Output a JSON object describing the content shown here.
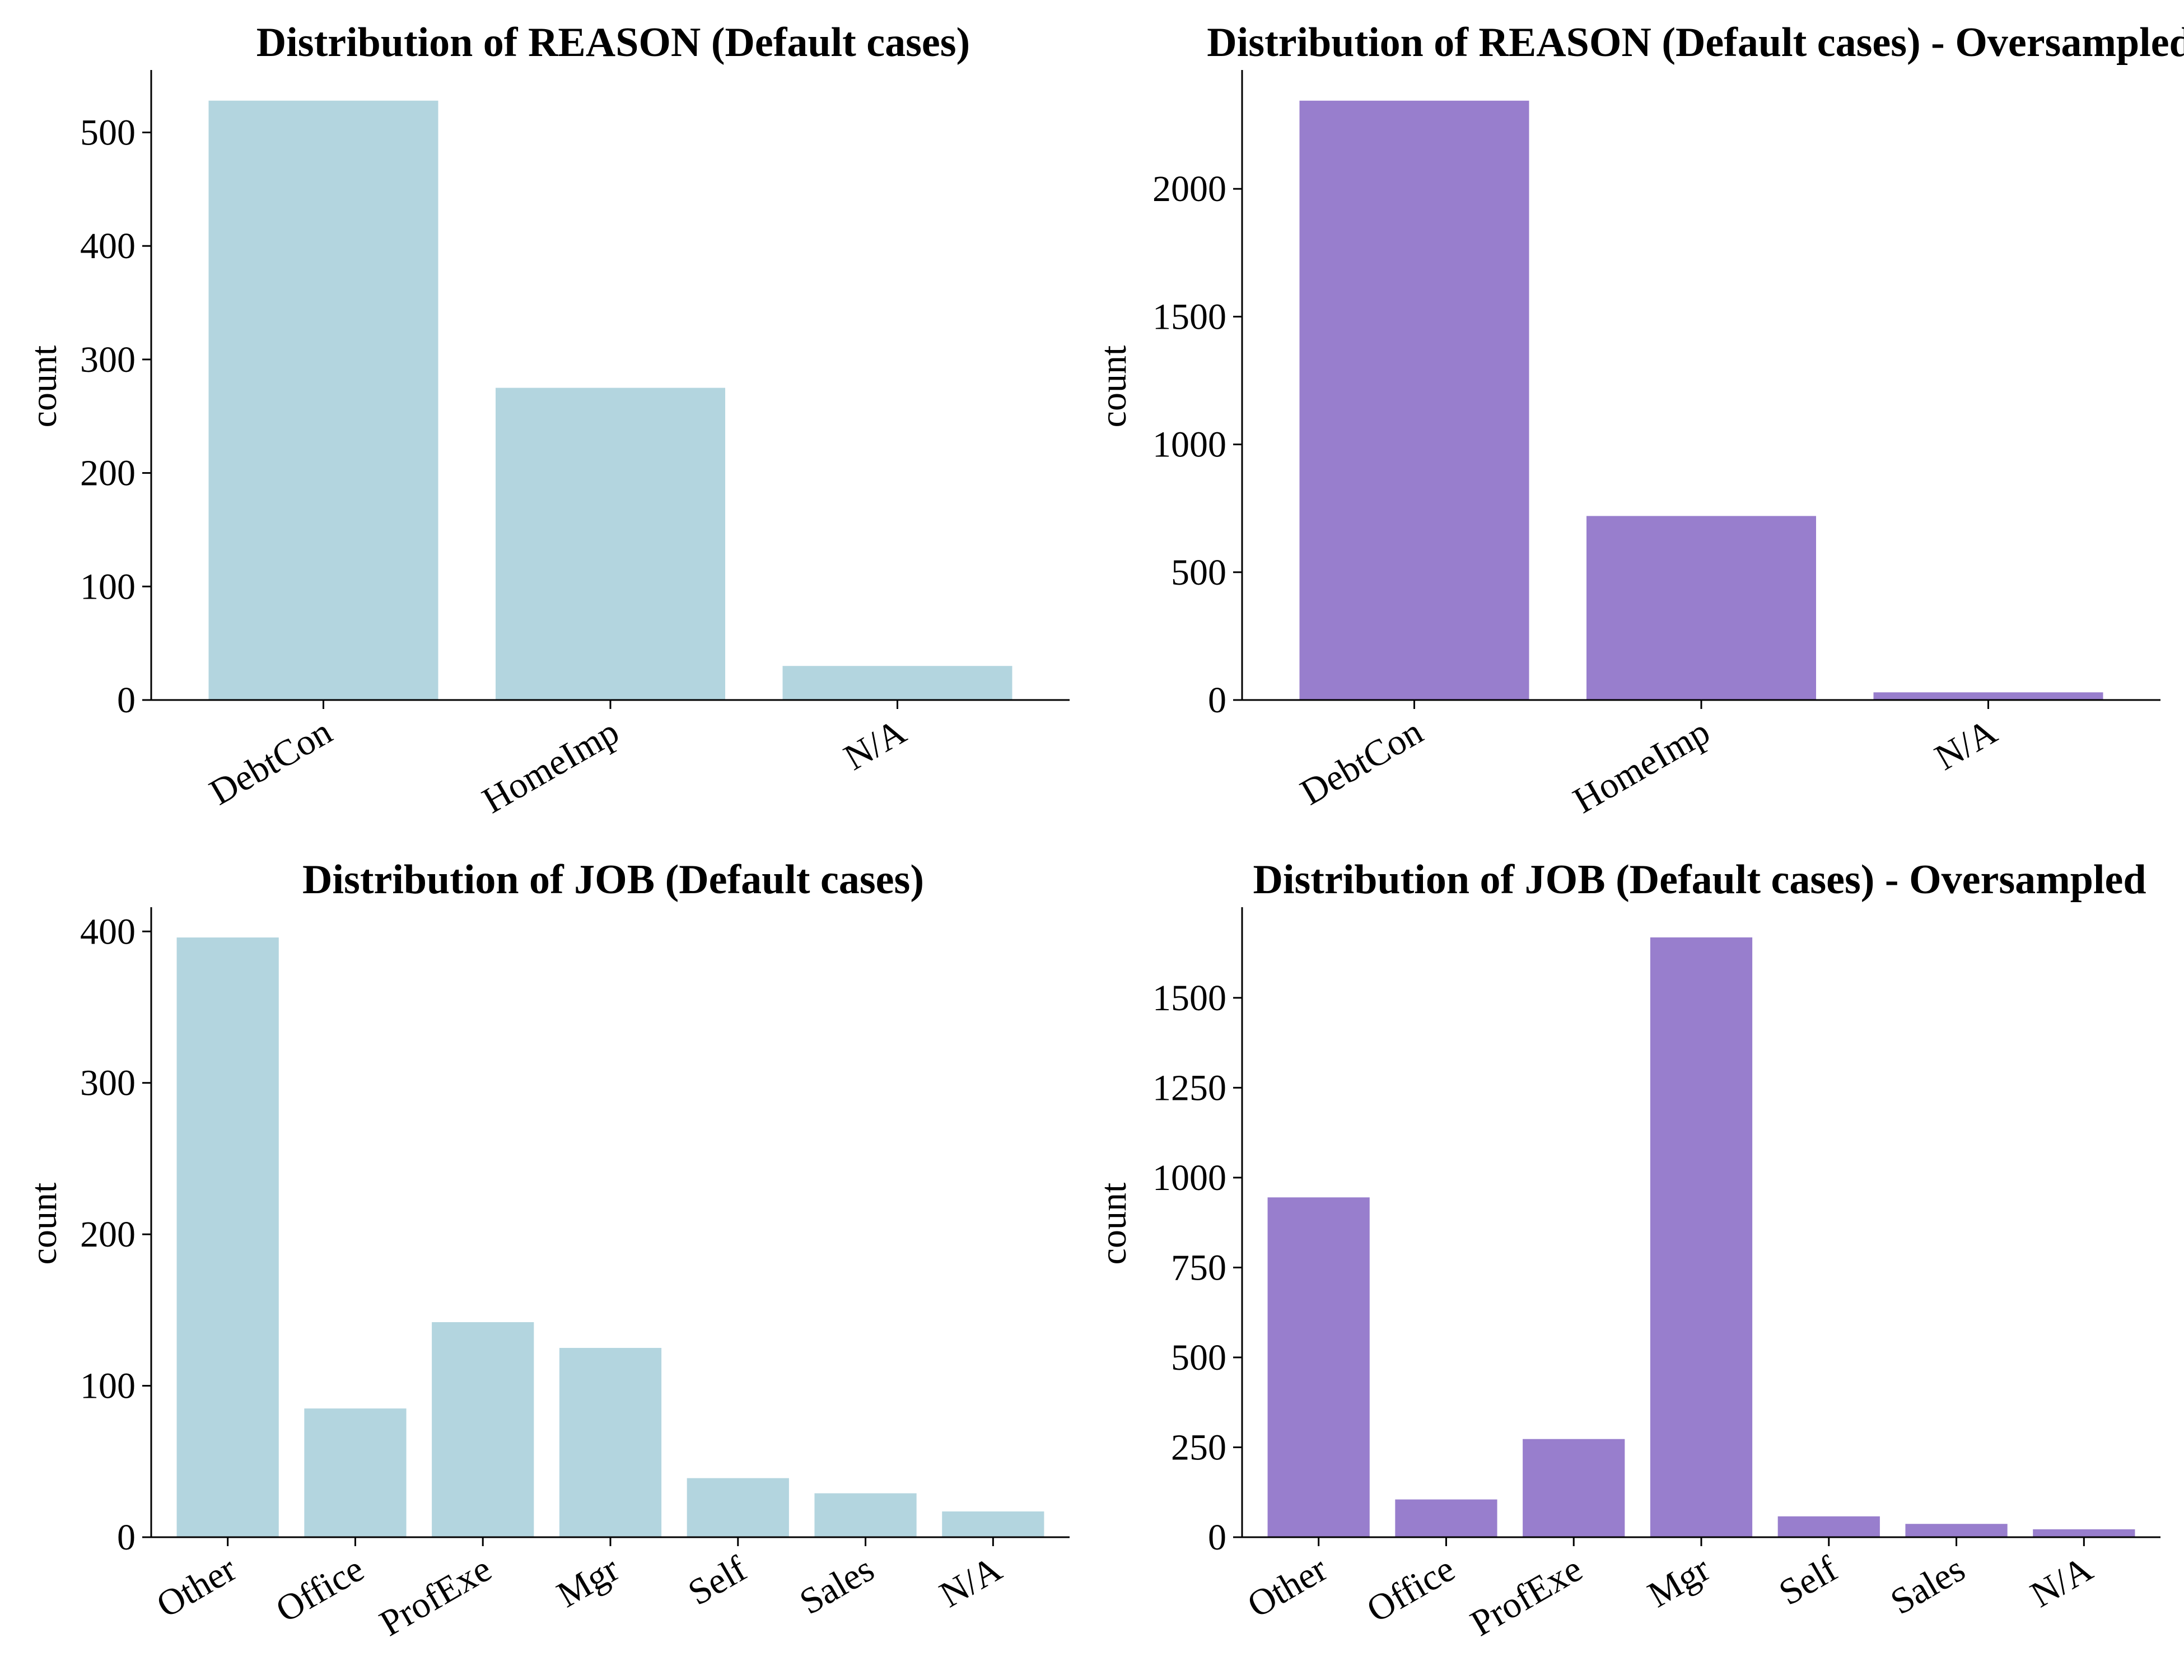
{
  "figure": {
    "colors": {
      "original_bar": "#b3d5df",
      "oversampled_bar": "#987ecd",
      "axis": "#000000",
      "background": "#ffffff"
    }
  },
  "chart_data": [
    {
      "type": "bar",
      "title": "Distribution of REASON (Default cases)",
      "xlabel": "",
      "ylabel": "count",
      "categories": [
        "DebtCon",
        "HomeImp",
        "N/A"
      ],
      "values": [
        528,
        275,
        30
      ],
      "yticks": [
        0,
        100,
        200,
        300,
        400,
        500
      ],
      "ylim": [
        0,
        555
      ],
      "color": "#b3d5df",
      "grid": false,
      "legend": "none"
    },
    {
      "type": "bar",
      "title": "Distribution of REASON (Default cases) - Oversampled",
      "xlabel": "",
      "ylabel": "count",
      "categories": [
        "DebtCon",
        "HomeImp",
        "N/A"
      ],
      "values": [
        2345,
        720,
        30
      ],
      "yticks": [
        0,
        500,
        1000,
        1500,
        2000
      ],
      "ylim": [
        0,
        2465
      ],
      "color": "#987ecd",
      "grid": false,
      "legend": "none"
    },
    {
      "type": "bar",
      "title": "Distribution of JOB (Default cases)",
      "xlabel": "",
      "ylabel": "count",
      "categories": [
        "Other",
        "Office",
        "ProfExe",
        "Mgr",
        "Self",
        "Sales",
        "N/A"
      ],
      "values": [
        396,
        85,
        142,
        125,
        39,
        29,
        17
      ],
      "yticks": [
        0,
        100,
        200,
        300,
        400
      ],
      "ylim": [
        0,
        416
      ],
      "color": "#b3d5df",
      "grid": false,
      "legend": "none"
    },
    {
      "type": "bar",
      "title": "Distribution of JOB (Default cases) - Oversampled",
      "xlabel": "",
      "ylabel": "count",
      "categories": [
        "Other",
        "Office",
        "ProfExe",
        "Mgr",
        "Self",
        "Sales",
        "N/A"
      ],
      "values": [
        945,
        105,
        273,
        1668,
        58,
        37,
        22
      ],
      "yticks": [
        0,
        250,
        500,
        750,
        1000,
        1250,
        1500
      ],
      "ylim": [
        0,
        1752
      ],
      "color": "#987ecd",
      "grid": false,
      "legend": "none"
    }
  ]
}
